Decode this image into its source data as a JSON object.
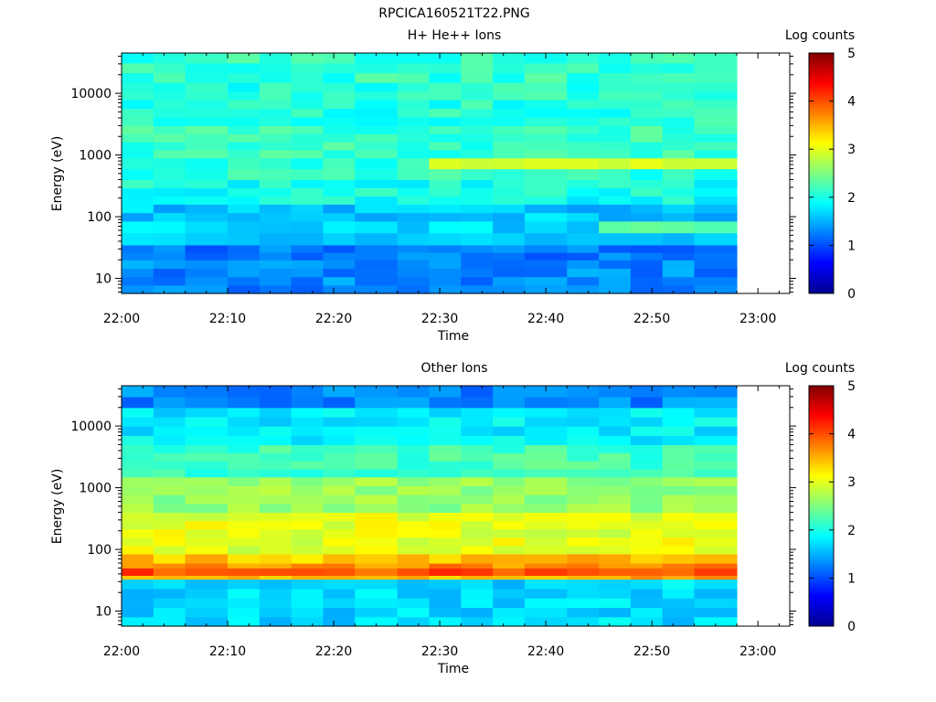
{
  "figure_title": "RPCICA160521T22.PNG",
  "colorbar": {
    "label": "Log counts",
    "ticks": [
      "0",
      "1",
      "2",
      "3",
      "4",
      "5"
    ],
    "range": [
      0,
      5
    ]
  },
  "chart_data": [
    {
      "type": "heatmap",
      "title": "H+ He++ Ions",
      "xlabel": "Time",
      "ylabel": "Energy (eV)",
      "y_scale": "log",
      "ylim": [
        5.7,
        45000
      ],
      "x_range": [
        "22:00",
        "23:03"
      ],
      "x_ticks": [
        "22:00",
        "22:10",
        "22:20",
        "22:30",
        "22:40",
        "22:50",
        "23:00"
      ],
      "y_ticks": [
        "10",
        "100",
        "1000",
        "10000"
      ],
      "time_bins": [
        "22:00",
        "22:03",
        "22:06",
        "22:10",
        "22:13",
        "22:16",
        "22:19",
        "22:22",
        "22:26",
        "22:29",
        "22:32",
        "22:35",
        "22:38",
        "22:42",
        "22:45",
        "22:48",
        "22:51",
        "22:54"
      ],
      "time_end": "22:58",
      "energy_bands": [
        {
          "from": 5.7,
          "to": 20,
          "level": 1.3
        },
        {
          "from": 20,
          "to": 35,
          "level": 1.2
        },
        {
          "from": 35,
          "to": 55,
          "level": 1.6
        },
        {
          "from": 55,
          "to": 85,
          "level": 1.7
        },
        {
          "from": 85,
          "to": 160,
          "level": 1.6
        },
        {
          "from": 160,
          "to": 400,
          "level": 1.95
        },
        {
          "from": 400,
          "to": 900,
          "level": 2.1
        },
        {
          "from": 900,
          "to": 3000,
          "level": 2.15
        },
        {
          "from": 3000,
          "to": 15000,
          "level": 2.05
        },
        {
          "from": 15000,
          "to": 45000,
          "level": 2.1
        }
      ],
      "features": [
        {
          "time_from": "22:29",
          "time_to": "22:58",
          "energy_from": 550,
          "energy_to": 850,
          "level": 2.95
        },
        {
          "time_from": "22:45",
          "time_to": "22:58",
          "energy_from": 45,
          "energy_to": 80,
          "level": 2.3
        }
      ]
    },
    {
      "type": "heatmap",
      "title": "Other Ions",
      "xlabel": "Time",
      "ylabel": "Energy (eV)",
      "y_scale": "log",
      "ylim": [
        5.7,
        45000
      ],
      "x_range": [
        "22:00",
        "23:03"
      ],
      "x_ticks": [
        "22:00",
        "22:10",
        "22:20",
        "22:30",
        "22:40",
        "22:50",
        "23:00"
      ],
      "y_ticks": [
        "10",
        "100",
        "1000",
        "10000"
      ],
      "time_bins": [
        "22:00",
        "22:03",
        "22:06",
        "22:10",
        "22:13",
        "22:16",
        "22:19",
        "22:22",
        "22:26",
        "22:29",
        "22:32",
        "22:35",
        "22:38",
        "22:42",
        "22:45",
        "22:48",
        "22:51",
        "22:54"
      ],
      "time_end": "22:58",
      "energy_bands": [
        {
          "from": 5.7,
          "to": 33,
          "level": 1.7
        },
        {
          "from": 33,
          "to": 38,
          "level": 3.5
        },
        {
          "from": 38,
          "to": 50,
          "level": 4.0
        },
        {
          "from": 50,
          "to": 60,
          "level": 3.7
        },
        {
          "from": 60,
          "to": 85,
          "level": 3.4
        },
        {
          "from": 85,
          "to": 400,
          "level": 3.0
        },
        {
          "from": 400,
          "to": 1500,
          "level": 2.6
        },
        {
          "from": 1500,
          "to": 5000,
          "level": 2.2
        },
        {
          "from": 5000,
          "to": 20000,
          "level": 1.8
        },
        {
          "from": 20000,
          "to": 45000,
          "level": 1.3
        }
      ]
    }
  ]
}
